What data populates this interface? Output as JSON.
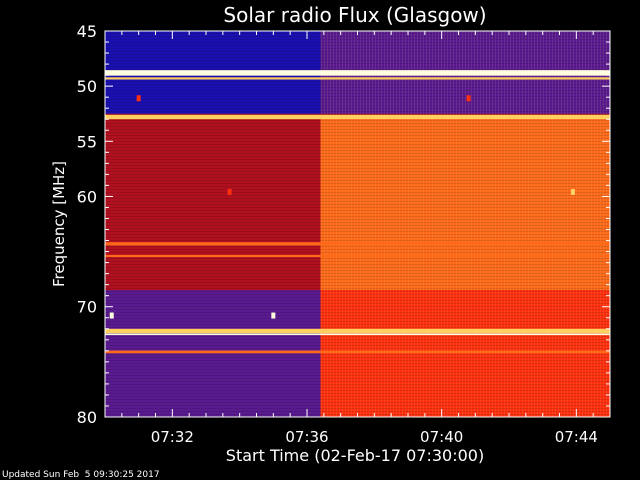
{
  "chart_data": {
    "type": "heatmap",
    "title": "Solar radio Flux (Glasgow)",
    "xlabel": "Start Time (02-Feb-17 07:30:00)",
    "ylabel": "Frequency [MHz]",
    "footer": "Updated Sun Feb  5 09:30:25 2017",
    "x_unit": "minutes",
    "xlim": [
      0,
      15
    ],
    "ylim": [
      80,
      45
    ],
    "x_ticks": [
      {
        "value": 2,
        "label": "07:32"
      },
      {
        "value": 6,
        "label": "07:36"
      },
      {
        "value": 10,
        "label": "07:40"
      },
      {
        "value": 14,
        "label": "07:44"
      }
    ],
    "y_ticks": [
      {
        "value": 45,
        "label": "45"
      },
      {
        "value": 50,
        "label": "50"
      },
      {
        "value": 55,
        "label": "55"
      },
      {
        "value": 60,
        "label": "60"
      },
      {
        "value": 70,
        "label": "70"
      },
      {
        "value": 80,
        "label": "80"
      }
    ],
    "y_minor_ticks": [
      46,
      47,
      48,
      49,
      51,
      52,
      53,
      54,
      56,
      57,
      58,
      59,
      61,
      62,
      63,
      64,
      65,
      66,
      67,
      68,
      69,
      71,
      72,
      73,
      74,
      75,
      76,
      77,
      78,
      79
    ],
    "x_minor_ticks": [
      0.5,
      1,
      1.5,
      2.5,
      3,
      3.5,
      4,
      4.5,
      5,
      5.5,
      6.5,
      7,
      7.5,
      8,
      8.5,
      9,
      9.5,
      10.5,
      11,
      11.5,
      12,
      12.5,
      13,
      13.5,
      14.5
    ],
    "colors": {
      "low": "#1a10b0",
      "low_mid": "#5a1a90",
      "mid": "#b01020",
      "high": "#ff3010",
      "higher": "#ff6a1a",
      "peak": "#ffd060",
      "max": "#ffffe0"
    },
    "regions": [
      {
        "x": [
          0,
          6.4
        ],
        "y": [
          45,
          52.5
        ],
        "level": "low"
      },
      {
        "x": [
          6.4,
          15
        ],
        "y": [
          45,
          52.5
        ],
        "level": "low_mid"
      },
      {
        "x": [
          0,
          6.4
        ],
        "y": [
          53,
          68.5
        ],
        "level": "mid"
      },
      {
        "x": [
          6.4,
          15
        ],
        "y": [
          53,
          68.5
        ],
        "level": "higher"
      },
      {
        "x": [
          0,
          6.4
        ],
        "y": [
          68.5,
          80
        ],
        "level": "low_mid"
      },
      {
        "x": [
          6.4,
          15
        ],
        "y": [
          68.5,
          80
        ],
        "level": "high"
      }
    ],
    "bands": [
      {
        "y": 48.8,
        "width": 0.5,
        "level": "max"
      },
      {
        "y": 49.3,
        "width": 0.2,
        "level": "peak"
      },
      {
        "y": 52.8,
        "width": 0.4,
        "level": "peak"
      },
      {
        "y": 64.3,
        "width": 0.3,
        "level": "higher"
      },
      {
        "y": 65.4,
        "width": 0.2,
        "level": "higher"
      },
      {
        "y": 72.2,
        "width": 0.4,
        "level": "peak"
      },
      {
        "y": 72.5,
        "width": 0.15,
        "level": "max"
      },
      {
        "y": 74.1,
        "width": 0.25,
        "level": "higher"
      }
    ],
    "spots": [
      {
        "x": 0.2,
        "y": 70.8,
        "level": "max"
      },
      {
        "x": 5.0,
        "y": 70.8,
        "level": "max"
      },
      {
        "x": 3.7,
        "y": 59.6,
        "level": "high"
      },
      {
        "x": 13.9,
        "y": 59.6,
        "level": "peak"
      },
      {
        "x": 1.0,
        "y": 51.1,
        "level": "high"
      },
      {
        "x": 10.8,
        "y": 51.1,
        "level": "high"
      }
    ]
  }
}
